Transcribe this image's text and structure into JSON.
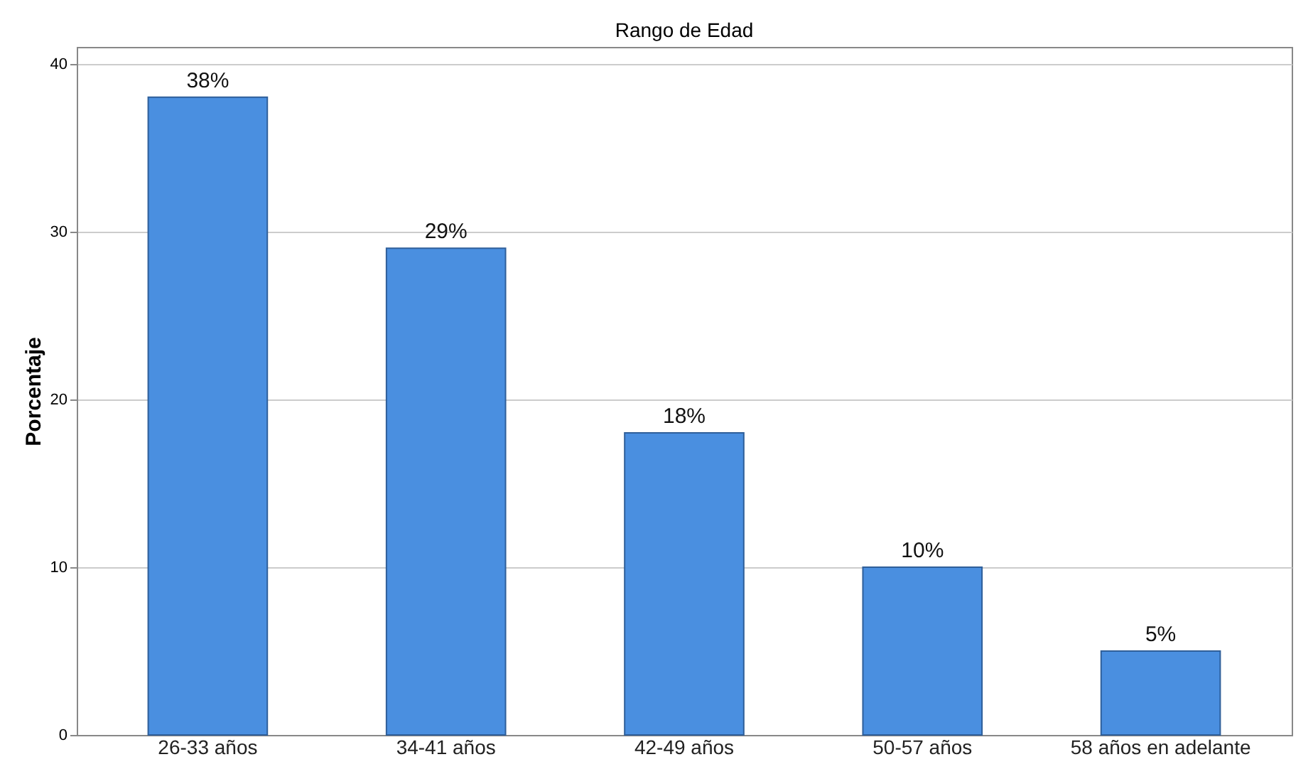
{
  "chart_data": {
    "type": "bar",
    "title": "Rango de Edad",
    "ylabel": "Porcentaje",
    "categories": [
      "26-33 años",
      "34-41 años",
      "42-49 años",
      "50-57 años",
      "58 años en adelante"
    ],
    "values": [
      38,
      29,
      18,
      10,
      5
    ],
    "value_labels": [
      "38%",
      "29%",
      "18%",
      "10%",
      "5%"
    ],
    "color": "#4a8fe0",
    "ylim": [
      0,
      41
    ],
    "yticks": [
      0,
      10,
      20,
      30,
      40
    ],
    "grid": "y"
  }
}
